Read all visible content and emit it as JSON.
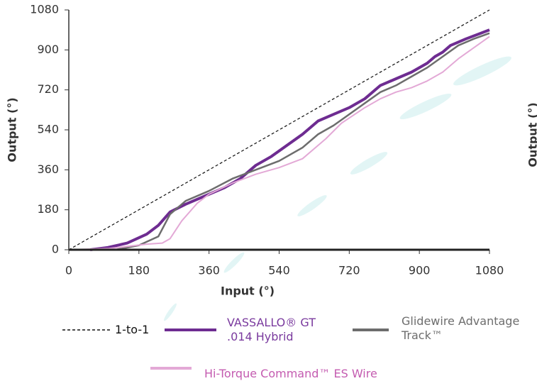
{
  "chart_data": {
    "type": "line",
    "x_label": "Input (°)",
    "y_label": "Output (°)",
    "clipped_axis_label": "Output (°)",
    "xlim": [
      0,
      1080
    ],
    "ylim": [
      0,
      1080
    ],
    "xticks": [
      0,
      180,
      360,
      540,
      720,
      900,
      1080
    ],
    "yticks": [
      0,
      180,
      360,
      540,
      720,
      900,
      1080
    ],
    "grid": false,
    "series": [
      {
        "name": "1-to-1",
        "color": "#111111",
        "text_color": "#111111",
        "dashed": true,
        "width": 1.2,
        "x": [
          0,
          1080
        ],
        "values": [
          0,
          1080
        ]
      },
      {
        "name": "VASSALLO® GT .014 Hybrid",
        "color": "#6e2c91",
        "text_color": "#7a3a9e",
        "dashed": false,
        "width": 4,
        "x": [
          55,
          100,
          150,
          200,
          230,
          260,
          300,
          360,
          400,
          440,
          480,
          520,
          560,
          600,
          640,
          680,
          720,
          760,
          800,
          840,
          880,
          920,
          940,
          960,
          980,
          1020,
          1080
        ],
        "values": [
          0,
          10,
          30,
          70,
          110,
          170,
          205,
          250,
          280,
          320,
          380,
          420,
          470,
          520,
          580,
          610,
          640,
          680,
          740,
          770,
          800,
          840,
          870,
          890,
          920,
          950,
          990
        ]
      },
      {
        "name": "Glidewire Advantage Track™",
        "color": "#6d6d6d",
        "text_color": "#6d6d6d",
        "dashed": false,
        "width": 2.5,
        "x": [
          120,
          180,
          230,
          260,
          300,
          360,
          420,
          480,
          540,
          600,
          640,
          680,
          720,
          760,
          800,
          840,
          880,
          920,
          960,
          1000,
          1040,
          1080
        ],
        "values": [
          0,
          20,
          60,
          160,
          220,
          265,
          320,
          360,
          400,
          460,
          520,
          560,
          610,
          660,
          710,
          740,
          780,
          820,
          870,
          920,
          950,
          975
        ]
      },
      {
        "name": "Hi-Torque Command™ ES Wire",
        "color": "#e3a9d6",
        "text_color": "#c45bb0",
        "dashed": false,
        "width": 2,
        "x": [
          0,
          100,
          200,
          240,
          260,
          290,
          330,
          360,
          420,
          480,
          540,
          600,
          660,
          700,
          760,
          800,
          840,
          880,
          920,
          960,
          1000,
          1040,
          1080
        ],
        "values": [
          0,
          5,
          25,
          30,
          50,
          130,
          210,
          250,
          300,
          340,
          370,
          410,
          500,
          570,
          640,
          680,
          710,
          730,
          760,
          800,
          860,
          910,
          960
        ]
      }
    ]
  }
}
